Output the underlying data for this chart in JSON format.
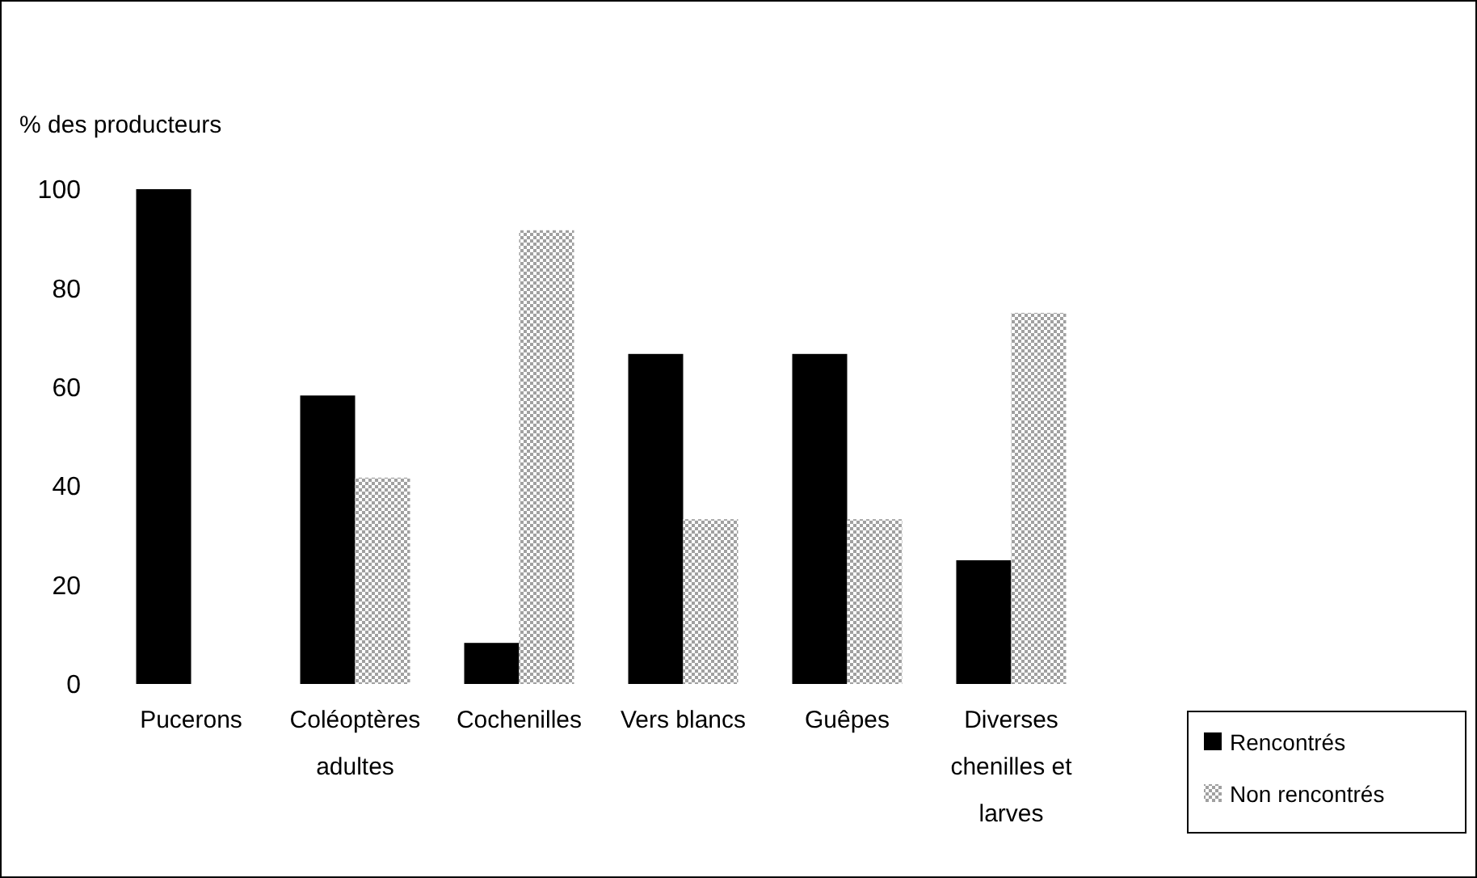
{
  "chart_data": {
    "type": "bar",
    "ylabel": "% des producteurs",
    "categories": [
      "Pucerons",
      "Coléoptères adultes",
      "Cochenilles",
      "Vers blancs",
      "Guêpes",
      "Diverses chenilles et larves"
    ],
    "series": [
      {
        "name": "Rencontrés",
        "color": "#000000",
        "values": [
          100,
          58.3,
          8.3,
          66.7,
          66.7,
          25
        ]
      },
      {
        "name": "Non rencontrés",
        "color": "#a0a0a0",
        "values": [
          0,
          41.7,
          91.7,
          33.3,
          33.3,
          75
        ]
      }
    ],
    "ylim": [
      0,
      100
    ],
    "yticks": [
      0,
      20,
      40,
      60,
      80,
      100
    ],
    "legend": "right",
    "grid": false
  }
}
